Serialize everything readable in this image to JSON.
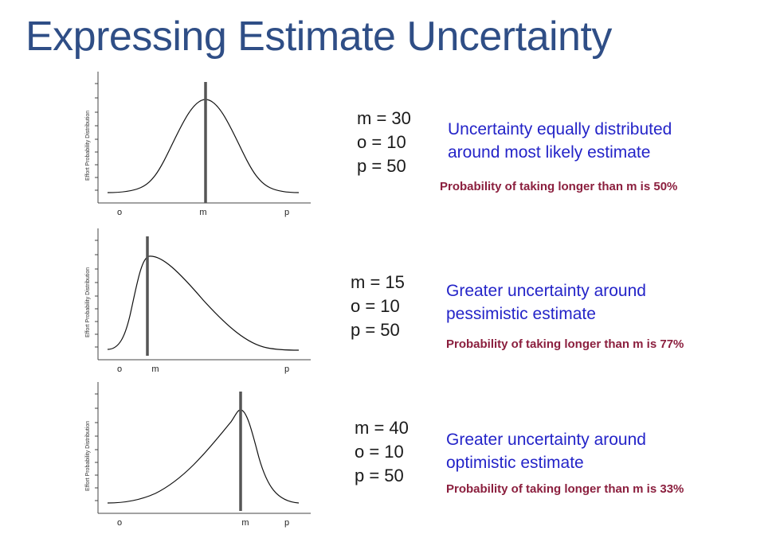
{
  "title": "Expressing Estimate Uncertainty",
  "panels": [
    {
      "ylabel": "Effort Probability Distribution",
      "x_labels": {
        "o": "o",
        "m": "m",
        "p": "p"
      },
      "params": {
        "m": "m = 30",
        "o": "o = 10",
        "p": "p = 50"
      },
      "desc": [
        "Uncertainty equally distributed",
        "around most likely estimate"
      ],
      "prob": "Probability of taking longer than m is 50%"
    },
    {
      "ylabel": "Effort Probability Distribution",
      "x_labels": {
        "o": "o",
        "m": "m",
        "p": "p"
      },
      "params": {
        "m": "m = 15",
        "o": "o = 10",
        "p": "p = 50"
      },
      "desc": [
        "Greater uncertainty around",
        "pessimistic estimate"
      ],
      "prob": "Probability of taking longer than m is 77%"
    },
    {
      "ylabel": "Effort Probability Distribution",
      "x_labels": {
        "o": "o",
        "m": "m",
        "p": "p"
      },
      "params": {
        "m": "m = 40",
        "o": "o = 10",
        "p": "p = 50"
      },
      "desc": [
        "Greater uncertainty around",
        "optimistic estimate"
      ],
      "prob": "Probability of taking longer than m is 33%"
    }
  ],
  "colors": {
    "title": "#2f4e86",
    "desc": "#2424c8",
    "prob": "#8b1f3e",
    "marker": "#555555"
  }
}
